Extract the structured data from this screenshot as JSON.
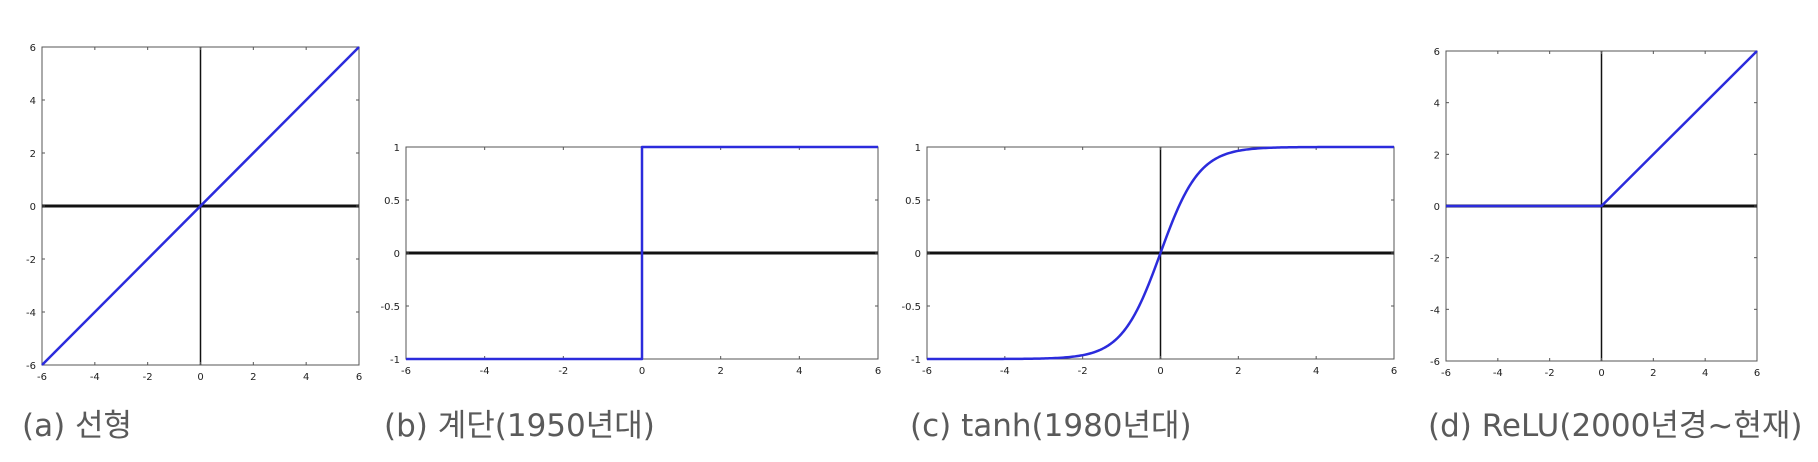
{
  "colors": {
    "curve": "#2b2bdc",
    "axis": "#111111",
    "caption": "#5a5a5a",
    "frame": "#555555"
  },
  "chart_data": [
    {
      "type": "line",
      "title": "",
      "caption": "(a) 선형",
      "function": "linear",
      "xlim": [
        -6,
        6
      ],
      "ylim": [
        -6,
        6
      ],
      "xticks": [
        -6,
        -4,
        -2,
        0,
        2,
        4,
        6
      ],
      "yticks": [
        -6,
        -4,
        -2,
        0,
        2,
        4,
        6
      ],
      "series": [
        {
          "x": [
            -6,
            6
          ],
          "y": [
            -6,
            6
          ]
        }
      ]
    },
    {
      "type": "line",
      "title": "",
      "caption": "(b) 계단(1950년대)",
      "function": "step",
      "xlim": [
        -6,
        6
      ],
      "ylim": [
        -1,
        1
      ],
      "xticks": [
        -6,
        -4,
        -2,
        0,
        2,
        4,
        6
      ],
      "yticks": [
        -1,
        -0.5,
        0,
        0.5,
        1
      ],
      "series": [
        {
          "x": [
            -6,
            0,
            0,
            6
          ],
          "y": [
            -1,
            -1,
            1,
            1
          ]
        }
      ]
    },
    {
      "type": "line",
      "title": "",
      "caption": "(c) tanh(1980년대)",
      "function": "tanh",
      "xlim": [
        -6,
        6
      ],
      "ylim": [
        -1,
        1
      ],
      "xticks": [
        -6,
        -4,
        -2,
        0,
        2,
        4,
        6
      ],
      "yticks": [
        -1,
        -0.5,
        0,
        0.5,
        1
      ],
      "series": [
        {
          "x": [
            -6,
            -4,
            -2,
            -1,
            0,
            1,
            2,
            4,
            6
          ],
          "y": [
            -1.0,
            -0.999,
            -0.964,
            -0.762,
            0,
            0.762,
            0.964,
            0.999,
            1.0
          ]
        }
      ]
    },
    {
      "type": "line",
      "title": "",
      "caption": "(d) ReLU(2000년경~현재)",
      "function": "relu",
      "xlim": [
        -6,
        6
      ],
      "ylim": [
        -6,
        6
      ],
      "xticks": [
        -6,
        -4,
        -2,
        0,
        2,
        4,
        6
      ],
      "yticks": [
        -6,
        -4,
        -2,
        0,
        2,
        4,
        6
      ],
      "series": [
        {
          "x": [
            -6,
            0,
            6
          ],
          "y": [
            0,
            0,
            6
          ]
        }
      ]
    }
  ]
}
